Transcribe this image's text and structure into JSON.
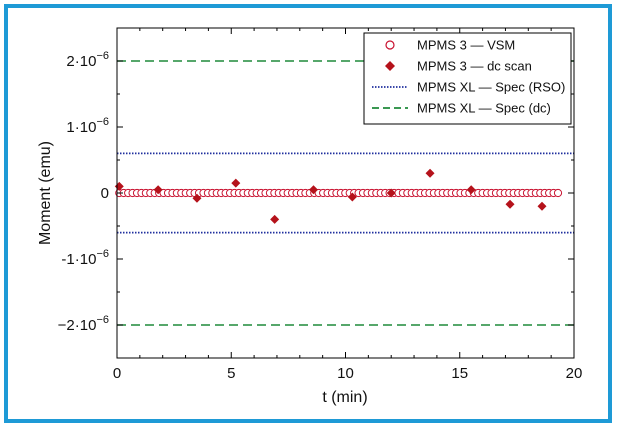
{
  "chart_data": {
    "type": "scatter",
    "xlabel": "t (min)",
    "ylabel": "Moment (emu)",
    "xlim": [
      0,
      20
    ],
    "ylim": [
      -2.5e-06,
      2.5e-06
    ],
    "x_ticks": [
      {
        "v": 0,
        "label": "0"
      },
      {
        "v": 5,
        "label": "5"
      },
      {
        "v": 10,
        "label": "10"
      },
      {
        "v": 15,
        "label": "15"
      },
      {
        "v": 20,
        "label": "20"
      }
    ],
    "y_ticks": [
      {
        "v": 2e-06,
        "label": "2·10",
        "exp": "−6"
      },
      {
        "v": 1e-06,
        "label": "1·10",
        "exp": "−6"
      },
      {
        "v": 0,
        "label": "0",
        "exp": ""
      },
      {
        "v": -1e-06,
        "label": "-1·10",
        "exp": "−6"
      },
      {
        "v": -2e-06,
        "label": "−2·10",
        "exp": "−6"
      }
    ],
    "legend_position": "top-right",
    "series": [
      {
        "name": "MPMS 3 — VSM",
        "marker": "open-circle",
        "color": "#c8102e",
        "x_start": 0.1,
        "x_end": 19.3,
        "count": 100,
        "y": 0
      },
      {
        "name": "MPMS 3 — dc scan",
        "marker": "filled-diamond",
        "color": "#b5121b",
        "points": [
          [
            0.1,
            1e-07
          ],
          [
            1.8,
            5e-08
          ],
          [
            3.5,
            -8e-08
          ],
          [
            5.2,
            1.5e-07
          ],
          [
            6.9,
            -4e-07
          ],
          [
            8.6,
            5e-08
          ],
          [
            10.3,
            -6e-08
          ],
          [
            12.0,
            0.0
          ],
          [
            13.7,
            3e-07
          ],
          [
            15.5,
            5e-08
          ],
          [
            17.2,
            -1.7e-07
          ],
          [
            18.6,
            -2e-07
          ]
        ]
      },
      {
        "name": "MPMS XL — Spec (RSO)",
        "line": "dotted",
        "color": "#1f2f9e",
        "levels": [
          6e-07,
          -6e-07
        ]
      },
      {
        "name": "MPMS XL — Spec (dc)",
        "line": "dashed",
        "color": "#1f8a3a",
        "levels": [
          2e-06,
          -2e-06
        ]
      }
    ]
  }
}
